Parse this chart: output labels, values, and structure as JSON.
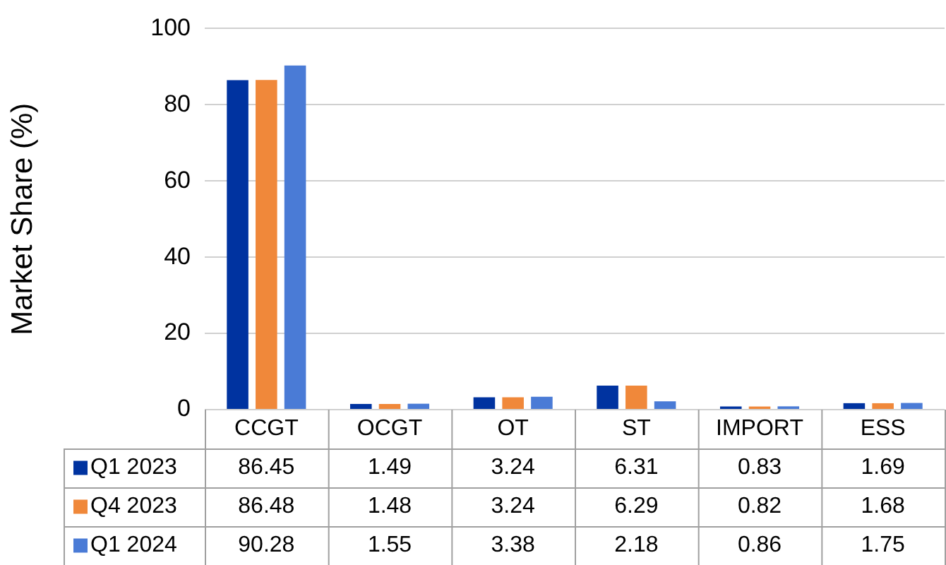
{
  "chart_data": {
    "type": "bar",
    "ylabel": "Market Share (%)",
    "categories": [
      "CCGT",
      "OCGT",
      "OT",
      "ST",
      "IMPORT",
      "ESS"
    ],
    "series": [
      {
        "name": "Q1 2023",
        "color": "#0033a0",
        "values": [
          86.45,
          1.49,
          3.24,
          6.31,
          0.83,
          1.69
        ]
      },
      {
        "name": "Q4 2023",
        "color": "#f0883a",
        "values": [
          86.48,
          1.48,
          3.24,
          6.29,
          0.82,
          1.68
        ]
      },
      {
        "name": "Q1 2024",
        "color": "#4a7bd6",
        "values": [
          90.28,
          1.55,
          3.38,
          2.18,
          0.86,
          1.75
        ]
      }
    ],
    "ylim": [
      0,
      100
    ],
    "yticks": [
      0,
      20,
      40,
      60,
      80,
      100
    ],
    "grid": "y",
    "legend": "bottom",
    "data_labels": true
  }
}
